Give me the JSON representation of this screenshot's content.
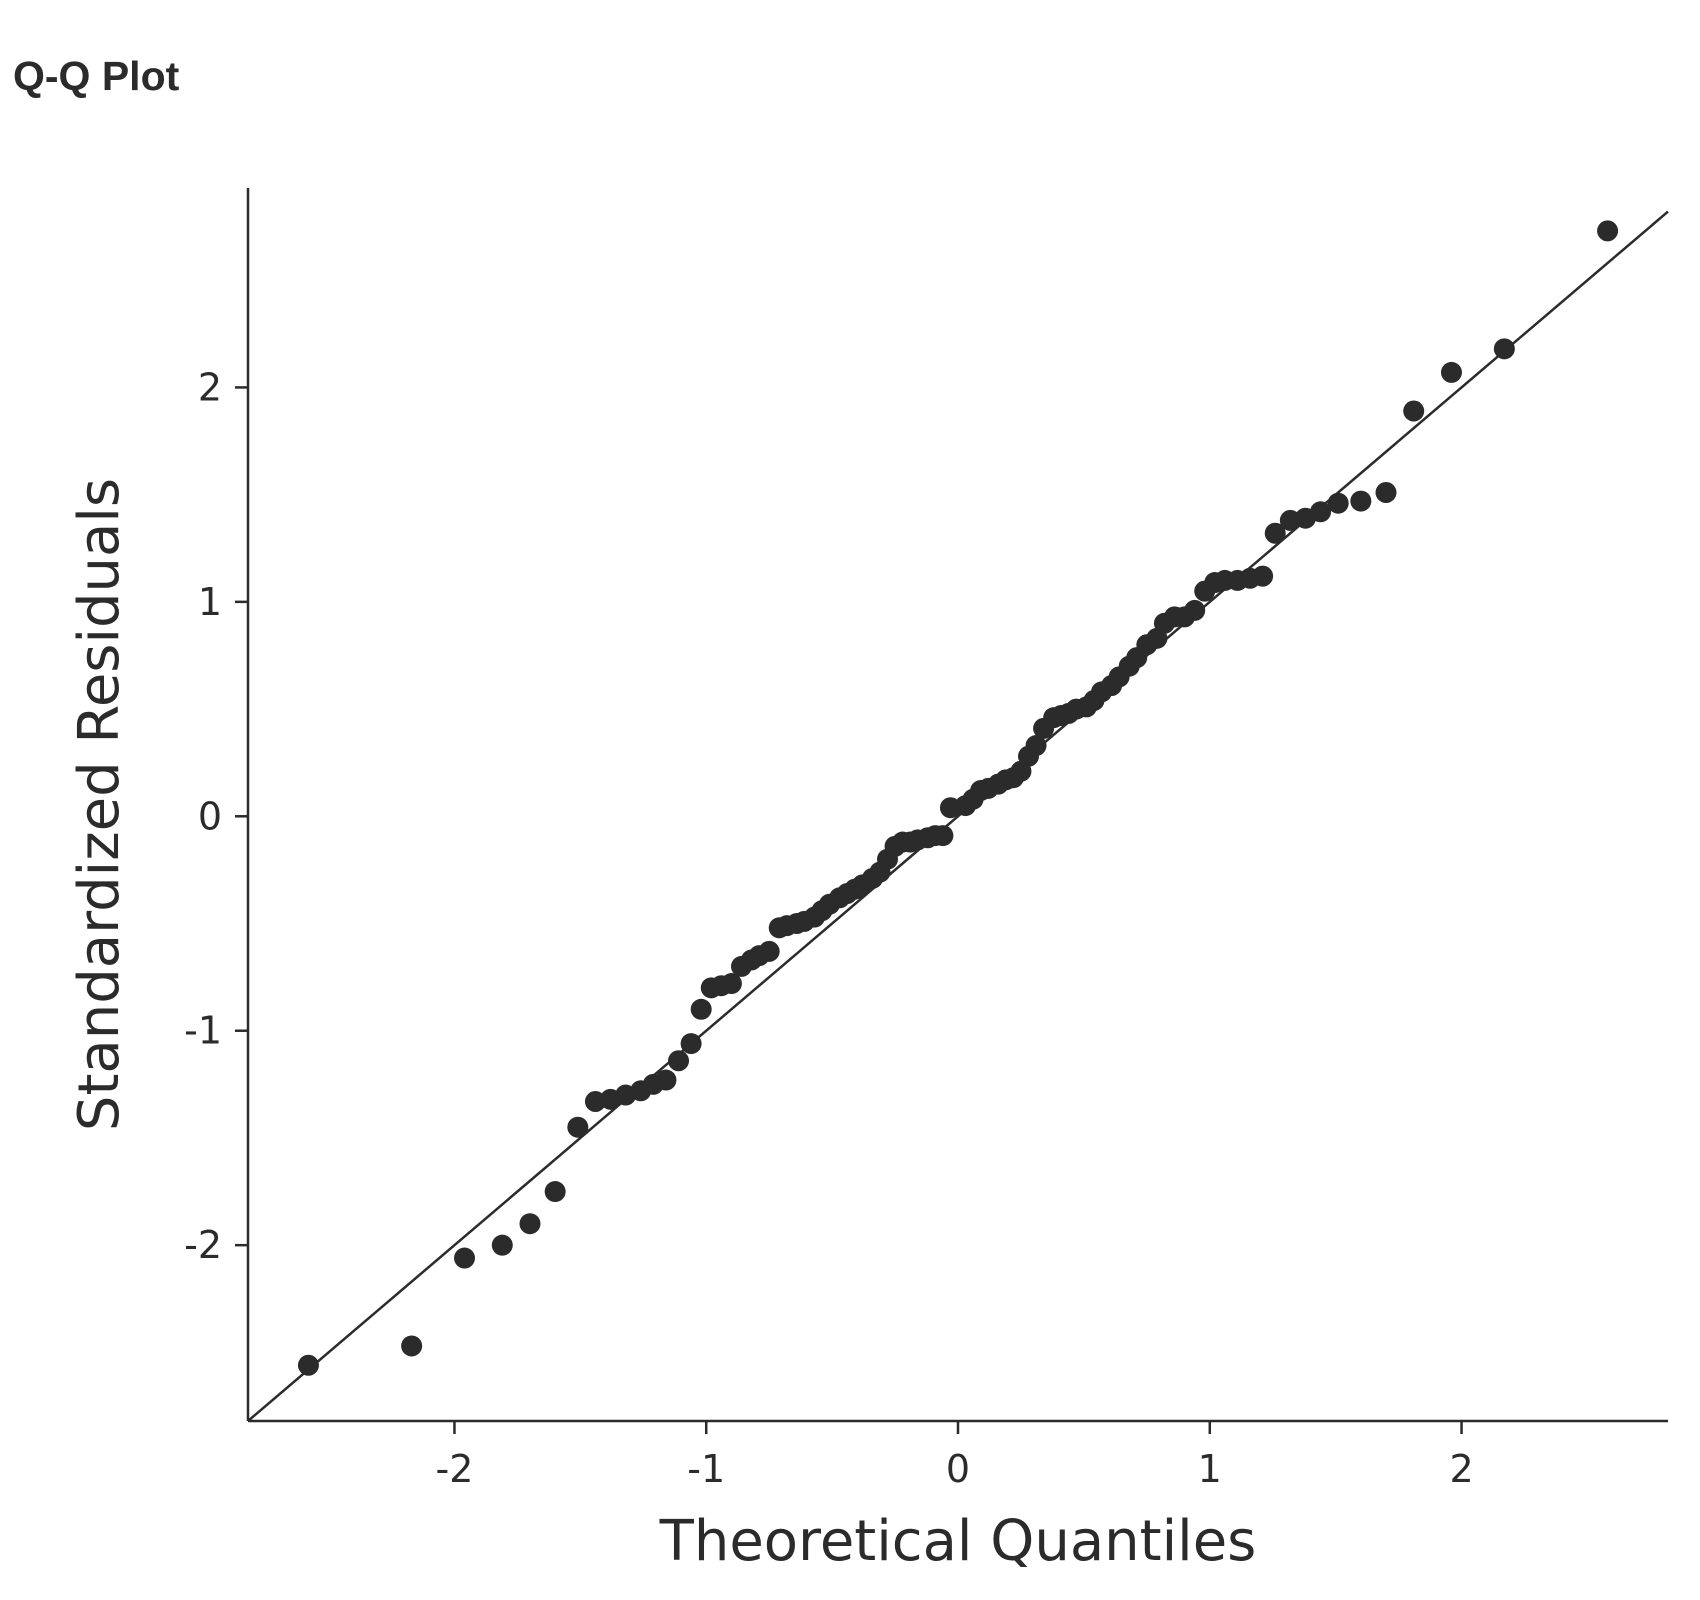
{
  "page": {
    "title": "Q-Q Plot"
  },
  "chart_data": {
    "type": "scatter",
    "title": "Q-Q Plot",
    "xlabel": "Theoretical Quantiles",
    "ylabel": "Standardized Residuals",
    "xlim": [
      -2.82,
      2.82
    ],
    "ylim": [
      -2.82,
      2.93
    ],
    "xticks": [
      -2,
      -1,
      0,
      1,
      2
    ],
    "yticks": [
      -2,
      -1,
      0,
      1,
      2
    ],
    "xtick_labels": [
      "-2",
      "-1",
      "0",
      "1",
      "2"
    ],
    "ytick_labels": [
      "-2",
      "-1",
      "0",
      "1",
      "2"
    ],
    "grid": false,
    "point_color": "#2b2b2b",
    "line_color": "#2b2b2b",
    "reference_line": {
      "slope": 1,
      "intercept": 0
    },
    "series": [
      {
        "x": [
          -2.58,
          -2.17,
          -1.96,
          -1.81,
          -1.7,
          -1.6,
          -1.51,
          -1.44,
          -1.38,
          -1.32,
          -1.26,
          -1.21,
          -1.16,
          -1.11,
          -1.06,
          -1.02,
          -0.98,
          -0.94,
          -0.9,
          -0.86,
          -0.82,
          -0.79,
          -0.75,
          -0.71,
          -0.68,
          -0.64,
          -0.61,
          -0.57,
          -0.54,
          -0.51,
          -0.47,
          -0.44,
          -0.41,
          -0.38,
          -0.34,
          -0.31,
          -0.28,
          -0.25,
          -0.22,
          -0.19,
          -0.16,
          -0.12,
          -0.09,
          -0.06,
          -0.03,
          0.03,
          0.06,
          0.09,
          0.12,
          0.16,
          0.19,
          0.22,
          0.25,
          0.28,
          0.31,
          0.34,
          0.38,
          0.41,
          0.44,
          0.47,
          0.51,
          0.54,
          0.57,
          0.61,
          0.64,
          0.68,
          0.71,
          0.75,
          0.79,
          0.82,
          0.86,
          0.9,
          0.94,
          0.98,
          1.02,
          1.06,
          1.11,
          1.16,
          1.21,
          1.26,
          1.32,
          1.38,
          1.44,
          1.51,
          1.6,
          1.7,
          1.81,
          1.96,
          2.17,
          2.58
        ],
        "y": [
          -2.56,
          -2.47,
          -2.06,
          -2.0,
          -1.9,
          -1.75,
          -1.45,
          -1.33,
          -1.32,
          -1.3,
          -1.28,
          -1.25,
          -1.23,
          -1.14,
          -1.06,
          -0.9,
          -0.8,
          -0.79,
          -0.78,
          -0.7,
          -0.67,
          -0.65,
          -0.63,
          -0.52,
          -0.51,
          -0.5,
          -0.49,
          -0.47,
          -0.44,
          -0.41,
          -0.38,
          -0.36,
          -0.34,
          -0.32,
          -0.29,
          -0.26,
          -0.2,
          -0.14,
          -0.12,
          -0.12,
          -0.11,
          -0.1,
          -0.09,
          -0.09,
          0.04,
          0.05,
          0.08,
          0.12,
          0.13,
          0.15,
          0.17,
          0.18,
          0.21,
          0.28,
          0.33,
          0.41,
          0.46,
          0.47,
          0.48,
          0.5,
          0.51,
          0.54,
          0.58,
          0.61,
          0.65,
          0.7,
          0.74,
          0.8,
          0.83,
          0.9,
          0.93,
          0.93,
          0.96,
          1.05,
          1.09,
          1.1,
          1.1,
          1.11,
          1.12,
          1.32,
          1.38,
          1.39,
          1.42,
          1.46,
          1.47,
          1.51,
          1.89,
          2.07,
          2.18,
          2.73
        ]
      }
    ]
  }
}
